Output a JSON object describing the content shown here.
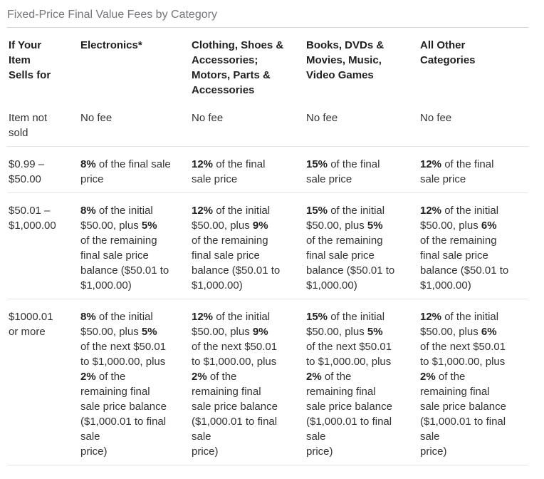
{
  "page_title": "Fixed-Price Final Value Fees by Category",
  "colors": {
    "title_text": "#75767a",
    "body_text": "#333333",
    "bold_text": "#1f1f1f",
    "title_divider": "#d4d4d4",
    "row_divider": "#e6e6e6"
  },
  "table": {
    "columns": [
      {
        "header": "If Your\nItem\nSells for"
      },
      {
        "header": "Electronics*"
      },
      {
        "header": "Clothing, Shoes &\nAccessories;\nMotors, Parts &\nAccessories"
      },
      {
        "header": "Books, DVDs &\nMovies, Music,\nVideo Games"
      },
      {
        "header": "All Other\nCategories"
      }
    ],
    "rows": [
      {
        "range": "Item not\nsold",
        "fees": [
          "No fee",
          "No fee",
          "No fee",
          "No fee"
        ]
      },
      {
        "range": "$0.99 –\n$50.00",
        "fees": [
          "**8%** of the final sale\nprice",
          "**12%** of the final\nsale price",
          "**15%** of the final\nsale price",
          "**12%** of the final\nsale price"
        ]
      },
      {
        "range": "$50.01 –\n$1,000.00",
        "fees": [
          "**8%** of the initial\n$50.00, plus **5%**\nof the remaining\nfinal sale price\nbalance ($50.01 to\n$1,000.00)",
          "**12%** of the initial\n$50.00, plus **9%**\nof the remaining\nfinal sale price\nbalance ($50.01 to\n$1,000.00)",
          "**15%** of the initial\n$50.00, plus **5%**\nof the remaining\nfinal sale price\nbalance ($50.01 to\n$1,000.00)",
          "**12%** of the initial\n$50.00, plus **6%**\nof the remaining\nfinal sale price\nbalance ($50.01 to\n$1,000.00)"
        ]
      },
      {
        "range": "$1000.01\nor more",
        "fees": [
          "**8%** of the initial\n$50.00, plus **5%**\nof the next $50.01\nto $1,000.00, plus\n**2%** of the\nremaining final\nsale price balance\n($1,000.01 to final\nsale\nprice)",
          "**12%** of the initial\n$50.00, plus **9%**\nof the next $50.01\nto $1,000.00, plus\n**2%** of the\nremaining final\nsale price balance\n($1,000.01 to final\nsale\nprice)",
          "**15%** of the initial\n$50.00, plus **5%**\nof the next $50.01\nto $1,000.00, plus\n**2%** of the\nremaining final\nsale price balance\n($1,000.01 to final\nsale\nprice)",
          "**12%** of the initial\n$50.00, plus **6%**\nof the next $50.01\nto $1,000.00, plus\n**2%** of the\nremaining final\nsale price balance\n($1,000.01 to final\nsale\nprice)"
        ]
      }
    ]
  }
}
